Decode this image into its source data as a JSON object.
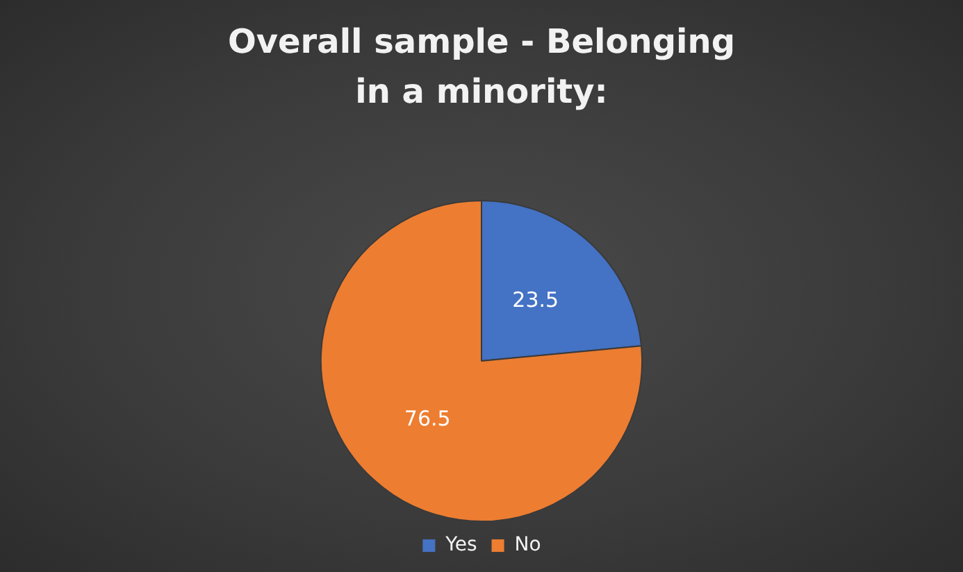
{
  "chart_data": {
    "type": "pie",
    "title": "Overall sample - Belonging in a minority:",
    "categories": [
      "Yes",
      "No"
    ],
    "values": [
      23.5,
      76.5
    ],
    "colors": [
      "#4472c4",
      "#ed7d31"
    ],
    "data_labels": true,
    "legend": "bottom"
  }
}
